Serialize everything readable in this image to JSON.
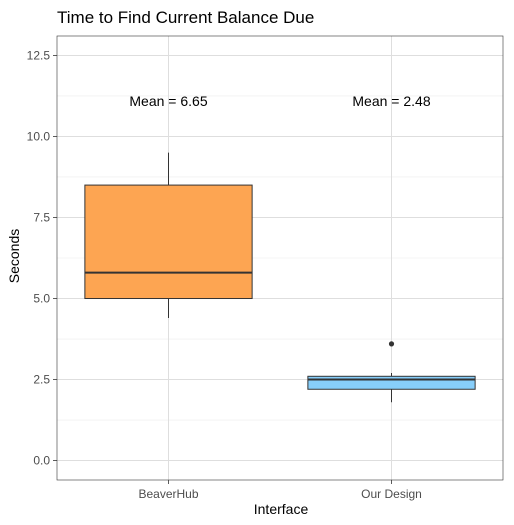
{
  "chart_data": {
    "type": "box",
    "title": "Time to Find Current Balance Due",
    "xlabel": "Interface",
    "ylabel": "Seconds",
    "categories": [
      "BeaverHub",
      "Our Design"
    ],
    "ylim": [
      -0.6,
      13.1
    ],
    "yticks": [
      0.0,
      2.5,
      5.0,
      7.5,
      10.0,
      12.5
    ],
    "ytick_labels": [
      "0.0",
      "2.5",
      "5.0",
      "7.5",
      "10.0",
      "12.5"
    ],
    "grid": true,
    "legend": "none",
    "series": [
      {
        "category": "BeaverHub",
        "color": "#fda552",
        "min": 4.4,
        "q1": 5.0,
        "median": 5.8,
        "q3": 8.5,
        "max": 9.5,
        "outliers": []
      },
      {
        "category": "Our Design",
        "color": "#87cefa",
        "min": 1.8,
        "q1": 2.2,
        "median": 2.5,
        "q3": 2.6,
        "max": 2.7,
        "outliers": [
          3.6
        ]
      }
    ],
    "annotations": [
      {
        "category": "BeaverHub",
        "y": 11.1,
        "text": "Mean = 6.65"
      },
      {
        "category": "Our Design",
        "y": 11.1,
        "text": "Mean = 2.48"
      }
    ]
  }
}
